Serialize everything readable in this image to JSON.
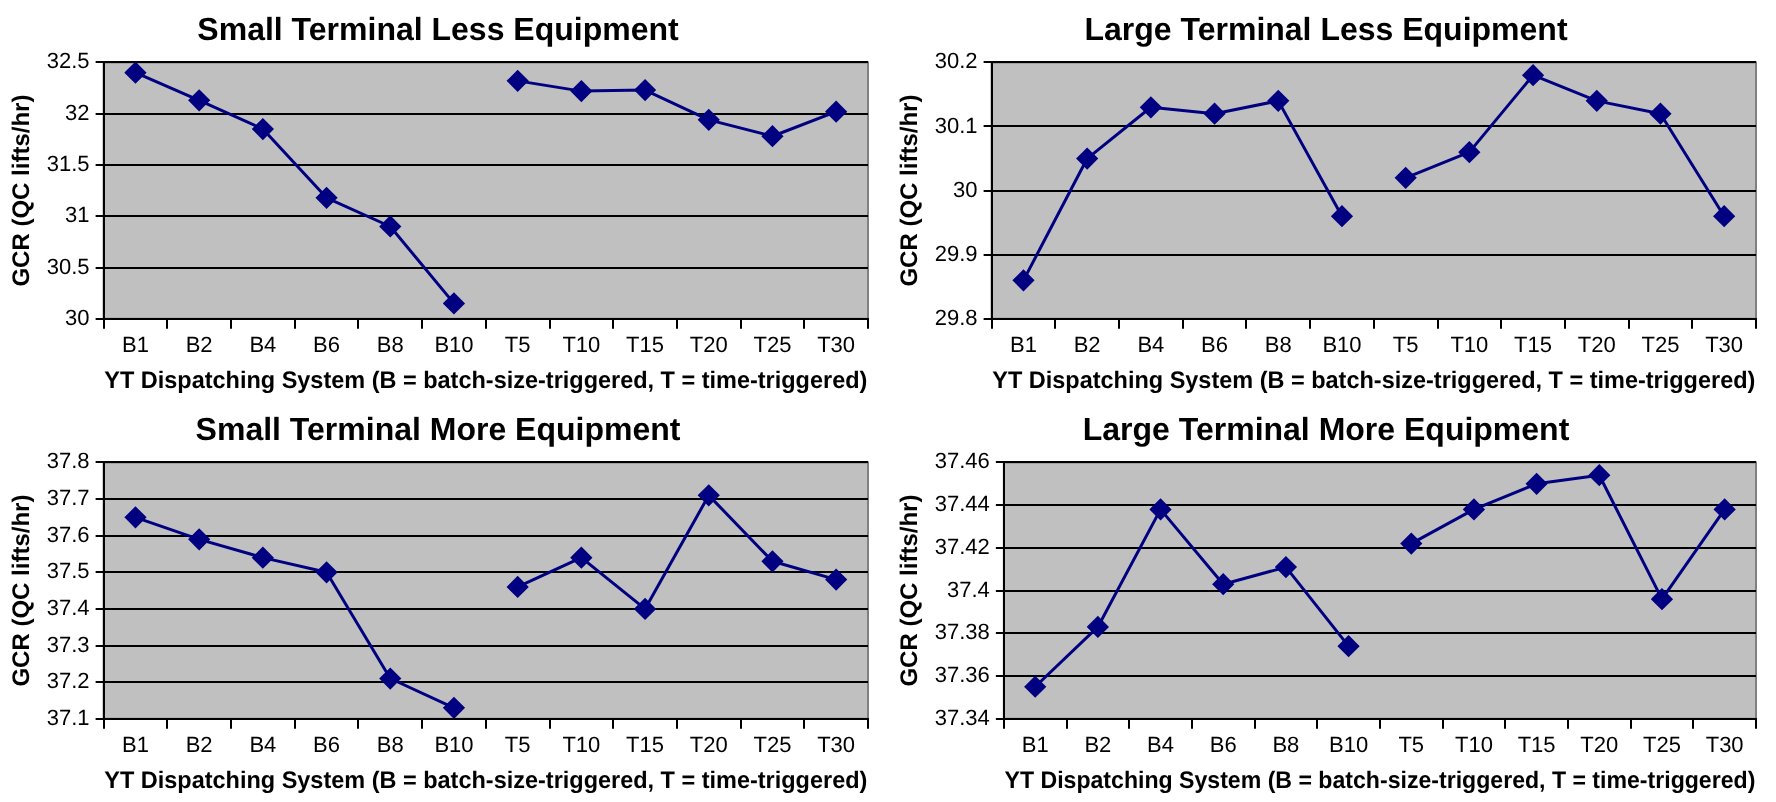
{
  "chart_data": [
    {
      "type": "line",
      "title": "Small Terminal Less Equipment",
      "xlabel": "YT Dispatching System (B = batch-size-triggered, T = time-triggered)",
      "ylabel": "GCR (QC lifts/hr)",
      "categories": [
        "B1",
        "B2",
        "B4",
        "B6",
        "B8",
        "B10",
        "T5",
        "T10",
        "T15",
        "T20",
        "T25",
        "T30"
      ],
      "series": [
        {
          "color": "#000080",
          "values": [
            32.4,
            32.13,
            31.85,
            31.18,
            30.9,
            30.15,
            null,
            null,
            null,
            null,
            null,
            null
          ]
        },
        {
          "color": "#000080",
          "values": [
            null,
            null,
            null,
            null,
            null,
            null,
            32.32,
            32.22,
            32.23,
            31.94,
            31.78,
            32.02
          ]
        }
      ],
      "ylim": [
        30,
        32.5
      ],
      "yticks": [
        30,
        30.5,
        31,
        31.5,
        32,
        32.5
      ],
      "grid": "y",
      "legend": false,
      "marker": "diamond",
      "line_style": "solid"
    },
    {
      "type": "line",
      "title": "Large Terminal Less Equipment",
      "xlabel": "YT Dispatching System (B = batch-size-triggered, T = time-triggered)",
      "ylabel": "GCR (QC lifts/hr)",
      "categories": [
        "B1",
        "B2",
        "B4",
        "B6",
        "B8",
        "B10",
        "T5",
        "T10",
        "T15",
        "T20",
        "T25",
        "T30"
      ],
      "series": [
        {
          "color": "#000080",
          "values": [
            29.86,
            30.05,
            30.13,
            30.12,
            30.14,
            29.96,
            null,
            null,
            null,
            null,
            null,
            null
          ]
        },
        {
          "color": "#000080",
          "values": [
            null,
            null,
            null,
            null,
            null,
            null,
            30.02,
            30.06,
            30.18,
            30.14,
            30.12,
            29.96
          ]
        }
      ],
      "ylim": [
        29.8,
        30.2
      ],
      "yticks": [
        29.8,
        29.9,
        30,
        30.1,
        30.2
      ],
      "grid": "y",
      "legend": false,
      "marker": "diamond",
      "line_style": "solid"
    },
    {
      "type": "line",
      "title": "Small Terminal More Equipment",
      "xlabel": "YT Dispatching System (B = batch-size-triggered, T = time-triggered)",
      "ylabel": "GCR (QC lifts/hr)",
      "categories": [
        "B1",
        "B2",
        "B4",
        "B6",
        "B8",
        "B10",
        "T5",
        "T10",
        "T15",
        "T20",
        "T25",
        "T30"
      ],
      "series": [
        {
          "color": "#000080",
          "values": [
            37.65,
            37.59,
            37.54,
            37.5,
            37.21,
            37.13,
            null,
            null,
            null,
            null,
            null,
            null
          ]
        },
        {
          "color": "#000080",
          "values": [
            null,
            null,
            null,
            null,
            null,
            null,
            37.46,
            37.54,
            37.4,
            37.71,
            37.53,
            37.48
          ]
        }
      ],
      "ylim": [
        37.1,
        37.8
      ],
      "yticks": [
        37.1,
        37.2,
        37.3,
        37.4,
        37.5,
        37.6,
        37.7,
        37.8
      ],
      "grid": "y",
      "legend": false,
      "marker": "diamond",
      "line_style": "solid"
    },
    {
      "type": "line",
      "title": "Large Terminal More Equipment",
      "xlabel": "YT Dispatching System (B = batch-size-triggered, T = time-triggered)",
      "ylabel": "GCR (QC lifts/hr)",
      "categories": [
        "B1",
        "B2",
        "B4",
        "B6",
        "B8",
        "B10",
        "T5",
        "T10",
        "T15",
        "T20",
        "T25",
        "T30"
      ],
      "series": [
        {
          "color": "#000080",
          "values": [
            37.355,
            37.383,
            37.438,
            37.403,
            37.411,
            37.374,
            null,
            null,
            null,
            null,
            null,
            null
          ]
        },
        {
          "color": "#000080",
          "values": [
            null,
            null,
            null,
            null,
            null,
            null,
            37.422,
            37.438,
            37.45,
            37.454,
            37.396,
            37.438
          ]
        }
      ],
      "ylim": [
        37.34,
        37.46
      ],
      "yticks": [
        37.34,
        37.36,
        37.38,
        37.4,
        37.42,
        37.44,
        37.46
      ],
      "grid": "y",
      "legend": false,
      "marker": "diamond",
      "line_style": "solid"
    }
  ]
}
